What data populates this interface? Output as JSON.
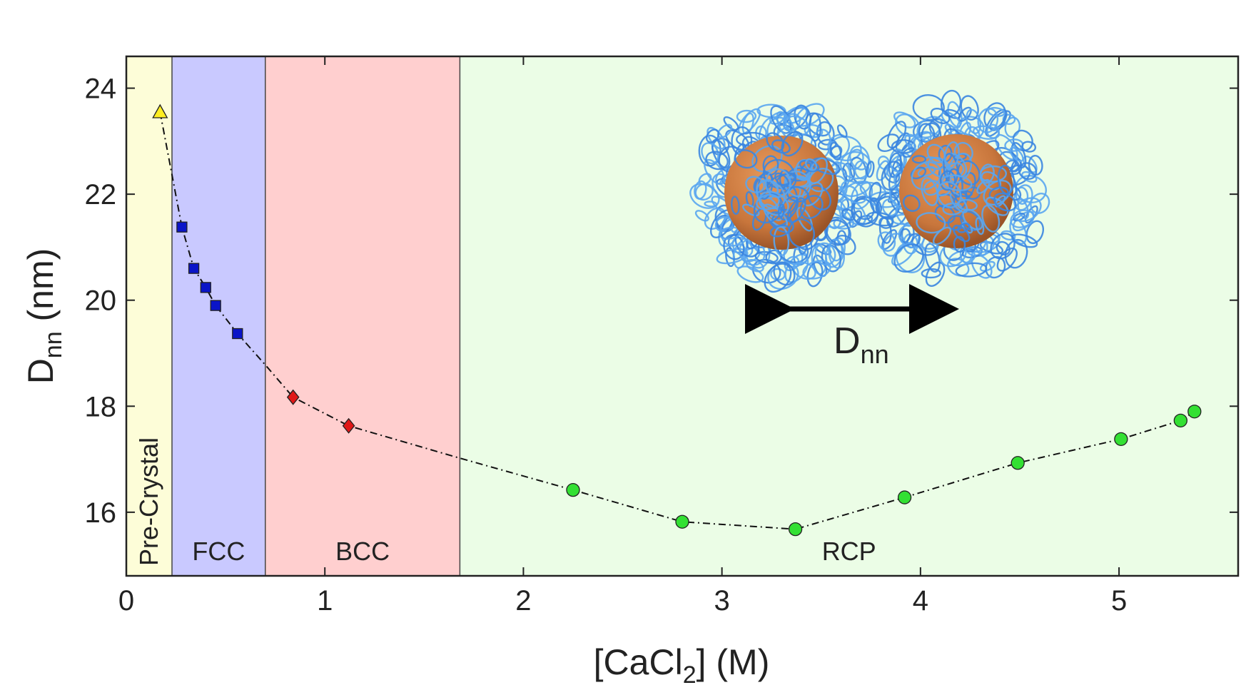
{
  "chart_data": {
    "type": "scatter",
    "title": "",
    "xlabel": "[CaCl2] (M)",
    "xlabel_main": "[CaCl",
    "xlabel_sub": "2",
    "xlabel_tail": "] (M)",
    "ylabel_main": "D",
    "ylabel_sub": "nn",
    "ylabel_tail": " (nm)",
    "xlim": [
      0,
      5.6
    ],
    "ylim": [
      14.8,
      24.6
    ],
    "xticks": [
      0,
      1,
      2,
      3,
      4,
      5
    ],
    "yticks": [
      16,
      18,
      20,
      22,
      24
    ],
    "grid": false,
    "regions": [
      {
        "label": "Pre-Crystal",
        "x0": 0,
        "x1": 0.23,
        "color": "#fdfdd8",
        "vertical": true
      },
      {
        "label": "FCC",
        "x0": 0.23,
        "x1": 0.7,
        "color": "#c9c9ff",
        "vertical": false
      },
      {
        "label": "BCC",
        "x0": 0.7,
        "x1": 1.68,
        "color": "#ffcfcf",
        "vertical": false
      },
      {
        "label": "RCP",
        "x0": 1.68,
        "x1": 5.6,
        "color": "#ebfde6",
        "vertical": false
      }
    ],
    "series": [
      {
        "marker": "triangle",
        "color": "#ffee22",
        "x": [
          0.17
        ],
        "y": [
          23.55
        ]
      },
      {
        "marker": "square",
        "color": "#0a14c8",
        "x": [
          0.28,
          0.34,
          0.4,
          0.45,
          0.56
        ],
        "y": [
          21.38,
          20.6,
          20.24,
          19.9,
          19.37
        ]
      },
      {
        "marker": "diamond",
        "color": "#e01818",
        "x": [
          0.84,
          1.12
        ],
        "y": [
          18.17,
          17.63
        ]
      },
      {
        "marker": "circle",
        "color": "#33e033",
        "x": [
          2.25,
          2.8,
          3.37,
          3.92,
          4.49,
          5.01,
          5.31,
          5.38
        ],
        "y": [
          16.42,
          15.82,
          15.68,
          16.28,
          16.93,
          17.38,
          17.73,
          17.9
        ]
      }
    ],
    "fit_line": {
      "style": "dash-dot",
      "x": [
        0.17,
        0.28,
        0.34,
        0.4,
        0.45,
        0.56,
        0.7,
        0.84,
        1.12,
        1.68,
        2.25,
        2.8,
        3.37,
        3.92,
        4.49,
        5.01,
        5.31,
        5.38
      ],
      "y": [
        23.55,
        21.38,
        20.6,
        20.24,
        19.9,
        19.37,
        18.78,
        18.17,
        17.63,
        17.02,
        16.42,
        15.82,
        15.68,
        16.28,
        16.93,
        17.38,
        17.73,
        17.9
      ]
    },
    "inset": {
      "description_icon": "two-nanoparticles-with-dna-corona",
      "arrow_label_main": "D",
      "arrow_label_sub": "nn",
      "core_color": "#c8763c",
      "corona_color": "#3b86e0"
    }
  }
}
